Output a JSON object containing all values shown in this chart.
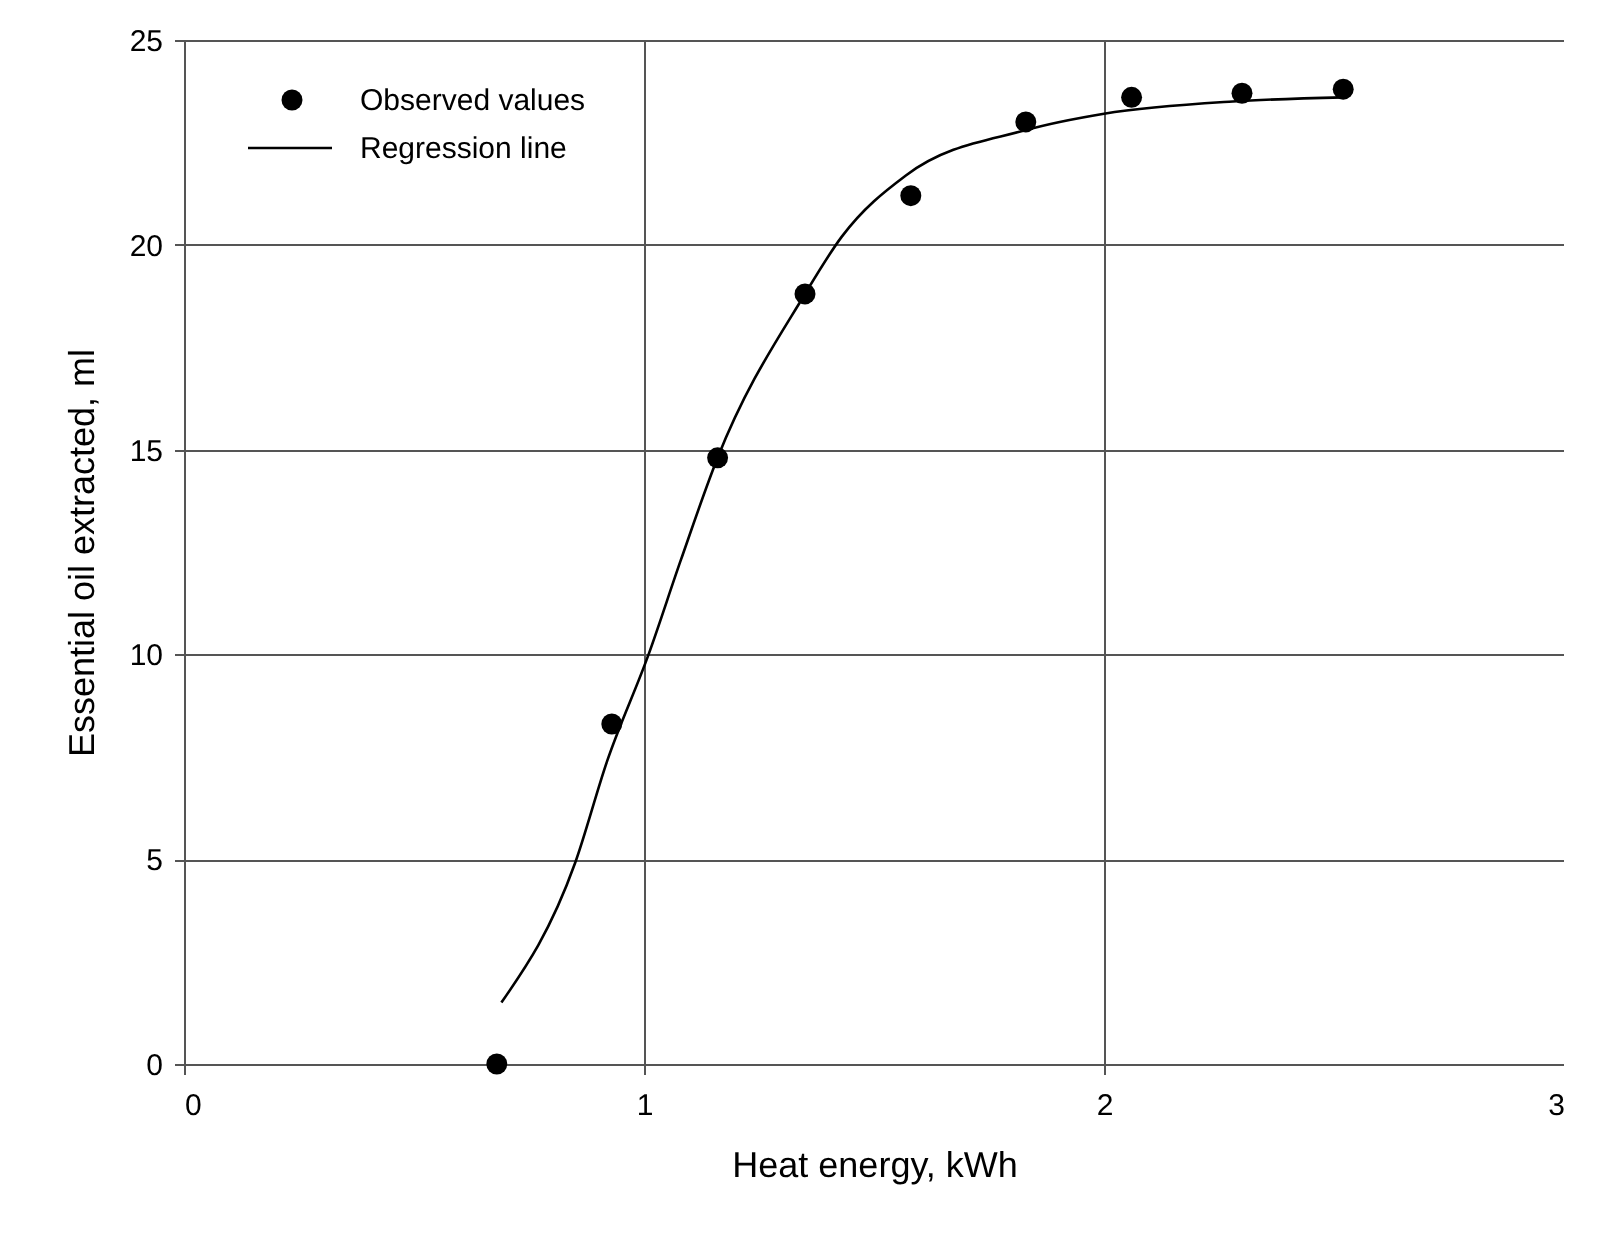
{
  "chart_data": {
    "type": "scatter",
    "xlabel": "Heat energy, kWh",
    "ylabel": "Essential oil extracted, ml",
    "xlim": [
      0,
      3
    ],
    "xticks": [
      0,
      1,
      2,
      3
    ],
    "ylim": [
      0,
      25
    ],
    "yticks": [
      0,
      5,
      10,
      15,
      20,
      25
    ],
    "grid": true,
    "legend": "top left",
    "series": [
      {
        "name": "Observed values",
        "marker": "circle",
        "color": "#000000",
        "x": [
          0.68,
          0.93,
          1.16,
          1.35,
          1.58,
          1.83,
          2.06,
          2.3,
          2.52
        ],
        "values": [
          0,
          8.3,
          14.8,
          18.8,
          21.2,
          23.0,
          23.6,
          23.7,
          23.8
        ]
      },
      {
        "name": "Regression line",
        "type": "line",
        "color": "#000000",
        "line_style": "solid",
        "x": [
          0.69,
          0.85,
          0.92,
          1.01,
          1.08,
          1.16,
          1.35,
          1.43,
          1.57,
          1.83,
          2.0,
          2.28,
          2.52
        ],
        "values": [
          1.5,
          4.9,
          7.4,
          10.0,
          12.3,
          14.8,
          18.8,
          20.2,
          21.7,
          22.8,
          23.2,
          23.5,
          23.6
        ]
      }
    ]
  }
}
